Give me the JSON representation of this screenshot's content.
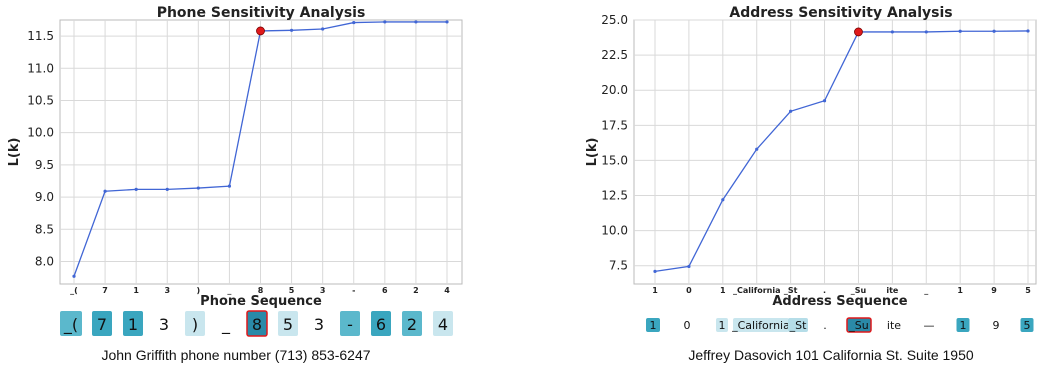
{
  "chart_data": [
    {
      "type": "line",
      "title": "Phone Sensitivity Analysis",
      "xlabel": "Phone Sequence",
      "ylabel": "L(k)",
      "ylim": [
        7.65,
        11.75
      ],
      "yticks": [
        8.0,
        8.5,
        9.0,
        9.5,
        10.0,
        10.5,
        11.0,
        11.5
      ],
      "categories": [
        "_(",
        "7",
        "1",
        "3",
        ")",
        "_",
        "8",
        "5",
        "3",
        "-",
        "6",
        "2",
        "4"
      ],
      "values": [
        7.77,
        9.09,
        9.12,
        9.12,
        9.14,
        9.17,
        11.58,
        11.59,
        11.61,
        11.71,
        11.72,
        11.72,
        11.72
      ],
      "highlight_index": 6,
      "grid": true,
      "tokens": [
        {
          "text": "_(",
          "color": "#5bb8cc",
          "size": "lg",
          "border": false
        },
        {
          "text": "7",
          "color": "#3aa6bf",
          "size": "lg",
          "border": false
        },
        {
          "text": "1",
          "color": "#3aa6bf",
          "size": "lg",
          "border": false
        },
        {
          "text": "3",
          "color": "",
          "size": "lg",
          "border": false
        },
        {
          "text": ")",
          "color": "#c9e6ee",
          "size": "lg",
          "border": false
        },
        {
          "text": "_",
          "color": "",
          "size": "lg",
          "border": false
        },
        {
          "text": "8",
          "color": "#2a8aa8",
          "size": "lg",
          "border": true
        },
        {
          "text": "5",
          "color": "#c9e6ee",
          "size": "lg",
          "border": false
        },
        {
          "text": "3",
          "color": "",
          "size": "lg",
          "border": false
        },
        {
          "text": "-",
          "color": "#5bb8cc",
          "size": "lg",
          "border": false
        },
        {
          "text": "6",
          "color": "#3aa6bf",
          "size": "lg",
          "border": false
        },
        {
          "text": "2",
          "color": "#5bb8cc",
          "size": "lg",
          "border": false
        },
        {
          "text": "4",
          "color": "#c9e6ee",
          "size": "lg",
          "border": false
        }
      ],
      "caption": "John Griffith phone number (713) 853-6247"
    },
    {
      "type": "line",
      "title": "Address Sensitivity Analysis",
      "xlabel": "Address Sequence",
      "ylabel": "L(k)",
      "ylim": [
        6.2,
        25.0
      ],
      "yticks": [
        7.5,
        10.0,
        12.5,
        15.0,
        17.5,
        20.0,
        22.5,
        25.0
      ],
      "categories": [
        "1",
        "0",
        "1",
        "_California",
        "_St",
        ".",
        "_Su",
        "ite",
        "_",
        "1",
        "9",
        "5"
      ],
      "values": [
        7.1,
        7.45,
        12.2,
        15.8,
        18.5,
        19.25,
        24.15,
        24.15,
        24.15,
        24.2,
        24.2,
        24.22
      ],
      "highlight_index": 6,
      "grid": true,
      "tokens": [
        {
          "text": "1",
          "color": "#3aa6bf",
          "size": "sm",
          "border": false
        },
        {
          "text": "0",
          "color": "",
          "size": "sm",
          "border": false
        },
        {
          "text": "1",
          "color": "#c9e6ee",
          "size": "sm",
          "border": false
        },
        {
          "text": "_California",
          "color": "#c9e6ee",
          "size": "sm",
          "border": false
        },
        {
          "text": "_St",
          "color": "#b5dde8",
          "size": "sm",
          "border": false
        },
        {
          "text": ".",
          "color": "",
          "size": "sm",
          "border": false
        },
        {
          "text": "_Su",
          "color": "#2a8aa8",
          "size": "sm",
          "border": true
        },
        {
          "text": "ite",
          "color": "",
          "size": "sm",
          "border": false
        },
        {
          "text": "—",
          "color": "",
          "size": "sm",
          "border": false
        },
        {
          "text": "1",
          "color": "#3aa6bf",
          "size": "sm",
          "border": false
        },
        {
          "text": "9",
          "color": "",
          "size": "sm",
          "border": false
        },
        {
          "text": "5",
          "color": "#3aa6bf",
          "size": "sm",
          "border": false
        }
      ],
      "caption": "Jeffrey Dasovich 101 California St. Suite 1950"
    }
  ],
  "colors": {
    "line": "#4166d5",
    "highlight": "#e0191b",
    "grid": "#d9d9d9",
    "frame": "#bbbbbb"
  }
}
